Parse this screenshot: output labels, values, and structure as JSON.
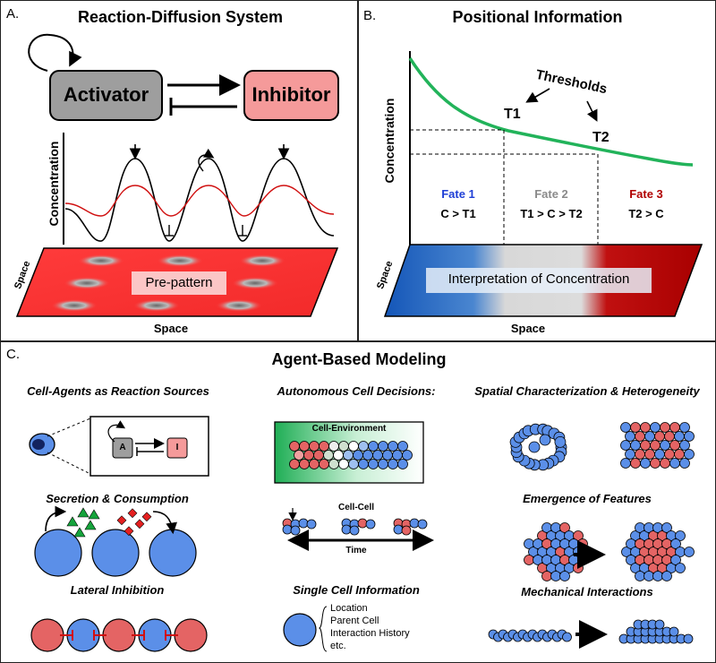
{
  "panel_a": {
    "letter": "A.",
    "title": "Reaction-Diffusion System",
    "activator": "Activator",
    "inhibitor": "Inhibitor",
    "y_label": "Concentration",
    "space_side": "Space",
    "space_bottom": "Space",
    "prepattern": "Pre-pattern"
  },
  "panel_b": {
    "letter": "B.",
    "title": "Positional Information",
    "thresholds": "Thresholds",
    "t1": "T1",
    "t2": "T2",
    "y_label": "Concentration",
    "fates": [
      {
        "name": "Fate 1",
        "cond": "C > T1",
        "color": "#1f3fd6"
      },
      {
        "name": "Fate 2",
        "cond": "T1 > C > T2",
        "color": "#8a8a8a"
      },
      {
        "name": "Fate 3",
        "cond": "T2 > C",
        "color": "#b00000"
      }
    ],
    "interpretation": "Interpretation of Concentration",
    "space_side": "Space",
    "space_bottom": "Space",
    "curve_color": "#22b35a"
  },
  "panel_c": {
    "letter": "C.",
    "title": "Agent-Based Modeling",
    "cell_agents": "Cell-Agents as Reaction Sources",
    "a_box": "A",
    "i_box": "I",
    "secretion": "Secretion & Consumption",
    "lateral": "Lateral Inhibition",
    "autonomous": "Autonomous Cell Decisions:",
    "cell_env": "Cell-Environment",
    "cell_cell": "Cell-Cell",
    "time": "Time",
    "single_cell": "Single Cell Information",
    "info_items": [
      "Location",
      "Parent Cell",
      "Interaction History",
      "etc."
    ],
    "spatial": "Spatial Characterization & Heterogeneity",
    "emergence": "Emergence of Features",
    "mechanical": "Mechanical Interactions",
    "cell_blue": "#5b8fe8",
    "cell_red": "#e46464"
  }
}
